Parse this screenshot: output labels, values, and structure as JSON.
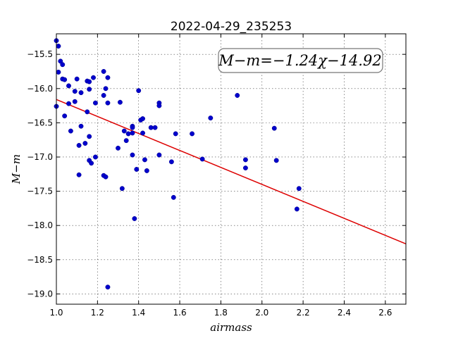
{
  "chart_data": {
    "type": "scatter",
    "title": "2022-04-29_235253",
    "xlabel": "airmass",
    "ylabel": "M−m",
    "xlim": [
      1.0,
      2.7
    ],
    "ylim": [
      -19.15,
      -15.2
    ],
    "x_ticks": [
      1.0,
      1.2,
      1.4,
      1.6,
      1.8,
      2.0,
      2.2,
      2.4,
      2.6
    ],
    "x_tick_labels": [
      "1.0",
      "1.2",
      "1.4",
      "1.6",
      "1.8",
      "2.0",
      "2.2",
      "2.4",
      "2.6"
    ],
    "y_ticks": [
      -15.5,
      -16.0,
      -16.5,
      -17.0,
      -17.5,
      -18.0,
      -18.5,
      -19.0
    ],
    "y_tick_labels": [
      "−15.5",
      "−16.0",
      "−16.5",
      "−17.0",
      "−17.5",
      "−18.0",
      "−18.5",
      "−19.0"
    ],
    "grid": true,
    "annotation": "M−m=−1.24χ−14.92",
    "fit": {
      "slope": -1.24,
      "intercept": -14.92
    },
    "colors": {
      "points": "#0000cc",
      "fit_line": "#dd0000"
    },
    "points": [
      [
        1.0,
        -15.3
      ],
      [
        1.01,
        -15.38
      ],
      [
        1.0,
        -16.26
      ],
      [
        1.02,
        -15.6
      ],
      [
        1.03,
        -15.65
      ],
      [
        1.01,
        -15.76
      ],
      [
        1.03,
        -15.86
      ],
      [
        1.04,
        -15.87
      ],
      [
        1.04,
        -16.4
      ],
      [
        1.06,
        -15.96
      ],
      [
        1.06,
        -16.22
      ],
      [
        1.07,
        -16.62
      ],
      [
        1.09,
        -16.04
      ],
      [
        1.09,
        -16.19
      ],
      [
        1.1,
        -15.86
      ],
      [
        1.11,
        -16.83
      ],
      [
        1.11,
        -17.26
      ],
      [
        1.12,
        -16.06
      ],
      [
        1.12,
        -16.55
      ],
      [
        1.14,
        -16.8
      ],
      [
        1.15,
        -15.89
      ],
      [
        1.16,
        -15.9
      ],
      [
        1.15,
        -16.34
      ],
      [
        1.16,
        -16.01
      ],
      [
        1.16,
        -16.7
      ],
      [
        1.16,
        -17.05
      ],
      [
        1.17,
        -17.09
      ],
      [
        1.18,
        -15.84
      ],
      [
        1.19,
        -16.21
      ],
      [
        1.19,
        -17.0
      ],
      [
        1.23,
        -15.75
      ],
      [
        1.23,
        -16.1
      ],
      [
        1.23,
        -17.27
      ],
      [
        1.24,
        -17.29
      ],
      [
        1.24,
        -16.0
      ],
      [
        1.25,
        -16.21
      ],
      [
        1.25,
        -15.84
      ],
      [
        1.25,
        -18.9
      ],
      [
        1.3,
        -16.87
      ],
      [
        1.31,
        -16.2
      ],
      [
        1.32,
        -17.46
      ],
      [
        1.33,
        -16.62
      ],
      [
        1.34,
        -16.76
      ],
      [
        1.35,
        -16.66
      ],
      [
        1.37,
        -16.55
      ],
      [
        1.37,
        -16.57
      ],
      [
        1.37,
        -16.65
      ],
      [
        1.37,
        -16.97
      ],
      [
        1.38,
        -17.9
      ],
      [
        1.39,
        -17.18
      ],
      [
        1.4,
        -16.03
      ],
      [
        1.41,
        -16.46
      ],
      [
        1.42,
        -16.44
      ],
      [
        1.42,
        -16.65
      ],
      [
        1.43,
        -17.04
      ],
      [
        1.44,
        -17.2
      ],
      [
        1.46,
        -16.57
      ],
      [
        1.48,
        -16.57
      ],
      [
        1.5,
        -16.21
      ],
      [
        1.5,
        -16.25
      ],
      [
        1.5,
        -16.97
      ],
      [
        1.56,
        -17.07
      ],
      [
        1.57,
        -17.59
      ],
      [
        1.58,
        -16.66
      ],
      [
        1.66,
        -16.66
      ],
      [
        1.71,
        -17.03
      ],
      [
        1.75,
        -16.43
      ],
      [
        1.88,
        -16.1
      ],
      [
        1.92,
        -17.04
      ],
      [
        1.92,
        -17.16
      ],
      [
        2.06,
        -16.58
      ],
      [
        2.07,
        -17.05
      ],
      [
        2.17,
        -17.76
      ],
      [
        2.18,
        -17.46
      ]
    ]
  }
}
